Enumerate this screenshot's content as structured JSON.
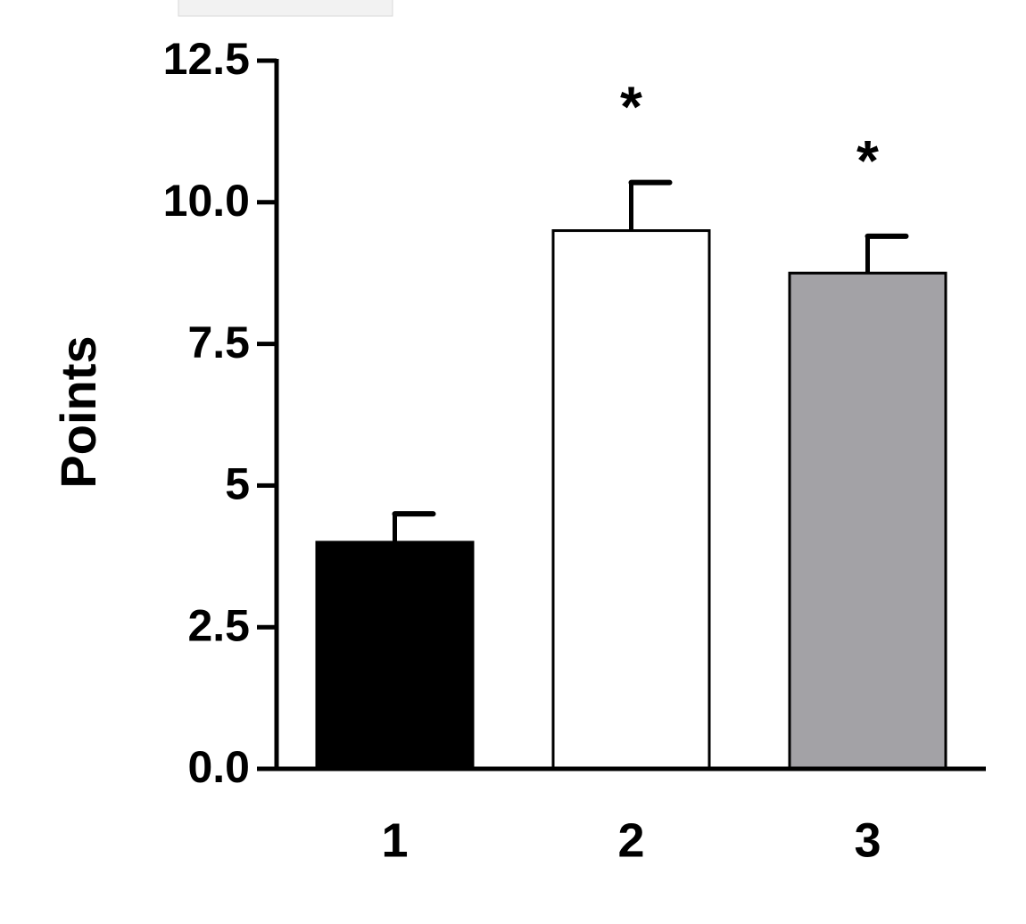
{
  "chart_data": {
    "type": "bar",
    "categories": [
      "1",
      "2",
      "3"
    ],
    "values": [
      4.0,
      9.5,
      8.75
    ],
    "errors": [
      0.5,
      0.85,
      0.65
    ],
    "colors": [
      "#000000",
      "#ffffff",
      "#a3a2a6"
    ],
    "significance": [
      null,
      "*",
      "*"
    ],
    "y_label": "Points",
    "ylim": [
      0,
      12.5
    ],
    "yticks": [
      {
        "value": 0,
        "label": "0.0"
      },
      2.5,
      5.0,
      7.5,
      {
        "value": 10,
        "label": "10.0"
      },
      12.5
    ]
  }
}
